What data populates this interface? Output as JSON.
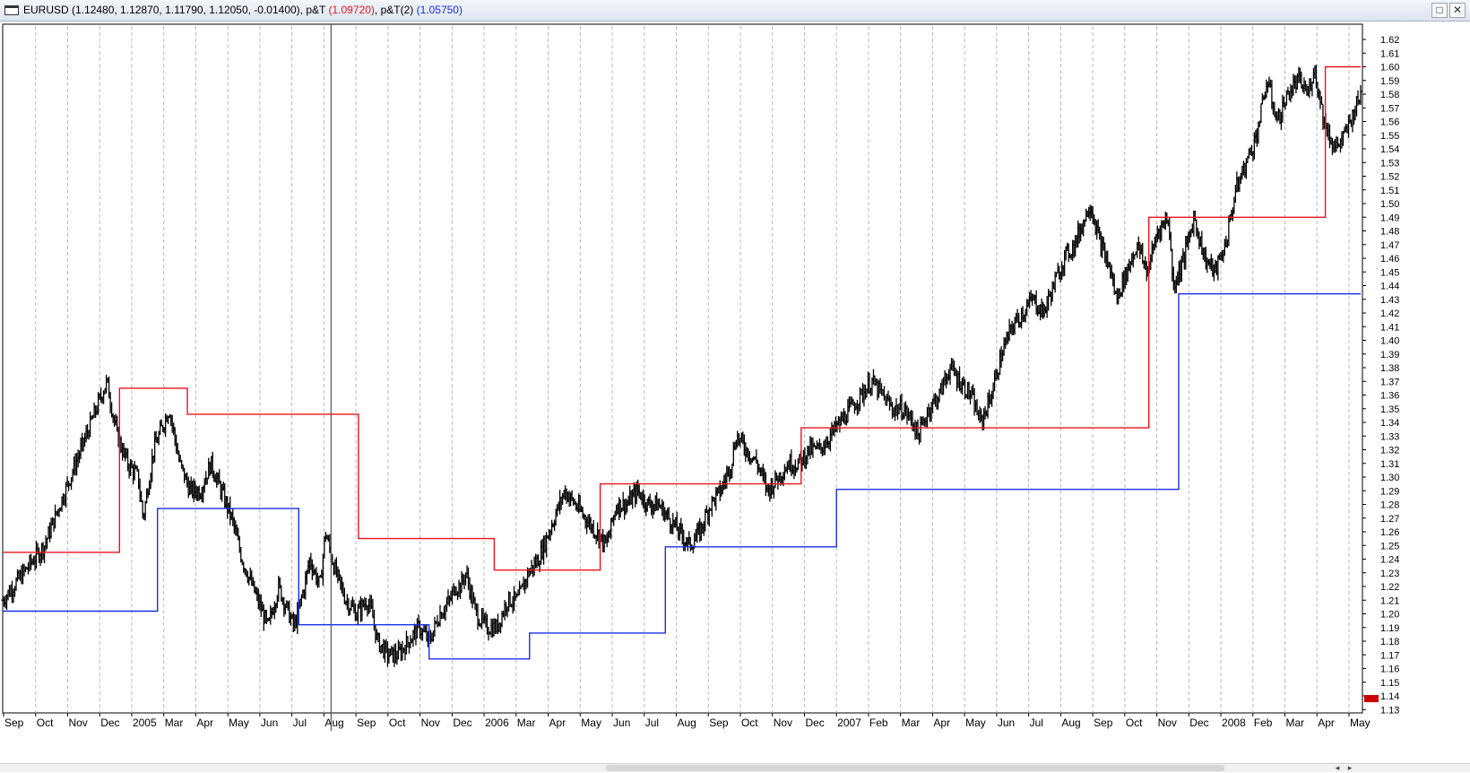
{
  "window": {
    "symbol": "EURUSD",
    "ohlc_text": "(1.12480, 1.12870, 1.11790, 1.12050, -0.01400),",
    "ind1_name": "p&T",
    "ind1_value": "(1.09720)",
    "ind2_name": "p&T(2)",
    "ind2_value": "(1.05750)",
    "maximize_icon": "□",
    "close_icon": "✕"
  },
  "colors": {
    "price": "#000000",
    "resistance": "#e8141e",
    "support": "#1a2fe8",
    "grid": "#b7b7b7",
    "ind1_text": "#e8141e",
    "ind2_text": "#1a2fe8"
  },
  "icons": {
    "close": "close-icon",
    "maximize": "maximize-icon",
    "window": "chart-window-icon"
  },
  "chart_data": {
    "type": "ohlc",
    "price_axis": {
      "min": 1.13,
      "max": 1.62,
      "step": 0.01,
      "labels": [
        "1.62",
        "1.61",
        "1.60",
        "1.59",
        "1.58",
        "1.57",
        "1.56",
        "1.55",
        "1.54",
        "1.53",
        "1.52",
        "1.51",
        "1.50",
        "1.49",
        "1.48",
        "1.47",
        "1.46",
        "1.45",
        "1.44",
        "1.43",
        "1.42",
        "1.41",
        "1.40",
        "1.39",
        "1.38",
        "1.37",
        "1.36",
        "1.35",
        "1.34",
        "1.33",
        "1.32",
        "1.31",
        "1.30",
        "1.29",
        "1.28",
        "1.27",
        "1.26",
        "1.25",
        "1.24",
        "1.23",
        "1.22",
        "1.21",
        "1.20",
        "1.19",
        "1.18",
        "1.17",
        "1.16",
        "1.15",
        "1.14",
        "1.13"
      ]
    },
    "time_axis": {
      "labels": [
        "Sep",
        "Oct",
        "Nov",
        "Dec",
        "2005",
        "Mar",
        "Apr",
        "May",
        "Jun",
        "Jul",
        "Aug",
        "Sep",
        "Oct",
        "Nov",
        "Dec",
        "2006",
        "Mar",
        "Apr",
        "May",
        "Jun",
        "Jul",
        "Aug",
        "Sep",
        "Oct",
        "Nov",
        "Dec",
        "2007",
        "Feb",
        "Mar",
        "Apr",
        "May",
        "Jun",
        "Jul",
        "Aug",
        "Sep",
        "Oct",
        "Nov",
        "Dec",
        "2008",
        "Feb",
        "Mar",
        "Apr",
        "May"
      ]
    },
    "grid": {
      "vertical": true,
      "horizontal": false,
      "style": "dashed"
    },
    "crosshair_month": "Aug",
    "price_path": [
      [
        0,
        1.21
      ],
      [
        4,
        1.23
      ],
      [
        8,
        1.25
      ],
      [
        11,
        1.28
      ],
      [
        14,
        1.31
      ],
      [
        17,
        1.34
      ],
      [
        19,
        1.36
      ],
      [
        20,
        1.37
      ],
      [
        22,
        1.33
      ],
      [
        24,
        1.31
      ],
      [
        26,
        1.3
      ],
      [
        27,
        1.27
      ],
      [
        29,
        1.32
      ],
      [
        31,
        1.34
      ],
      [
        32,
        1.35
      ],
      [
        34,
        1.31
      ],
      [
        36,
        1.29
      ],
      [
        38,
        1.29
      ],
      [
        40,
        1.31
      ],
      [
        42,
        1.29
      ],
      [
        44,
        1.27
      ],
      [
        46,
        1.24
      ],
      [
        48,
        1.22
      ],
      [
        50,
        1.2
      ],
      [
        51,
        1.19
      ],
      [
        53,
        1.22
      ],
      [
        56,
        1.19
      ],
      [
        58,
        1.22
      ],
      [
        59,
        1.24
      ],
      [
        61,
        1.22
      ],
      [
        62,
        1.26
      ],
      [
        64,
        1.23
      ],
      [
        66,
        1.21
      ],
      [
        68,
        1.2
      ],
      [
        70,
        1.21
      ],
      [
        71,
        1.2
      ],
      [
        72,
        1.18
      ],
      [
        74,
        1.17
      ],
      [
        76,
        1.17
      ],
      [
        78,
        1.18
      ],
      [
        80,
        1.19
      ],
      [
        82,
        1.18
      ],
      [
        84,
        1.2
      ],
      [
        86,
        1.21
      ],
      [
        87,
        1.22
      ],
      [
        88,
        1.22
      ],
      [
        89,
        1.23
      ],
      [
        91,
        1.2
      ],
      [
        93,
        1.19
      ],
      [
        95,
        1.19
      ],
      [
        97,
        1.21
      ],
      [
        99,
        1.21
      ],
      [
        101,
        1.23
      ],
      [
        103,
        1.24
      ],
      [
        105,
        1.26
      ],
      [
        107,
        1.28
      ],
      [
        108,
        1.29
      ],
      [
        110,
        1.28
      ],
      [
        112,
        1.27
      ],
      [
        114,
        1.26
      ],
      [
        116,
        1.25
      ],
      [
        118,
        1.28
      ],
      [
        120,
        1.28
      ],
      [
        122,
        1.29
      ],
      [
        124,
        1.28
      ],
      [
        126,
        1.28
      ],
      [
        128,
        1.27
      ],
      [
        130,
        1.26
      ],
      [
        132,
        1.25
      ],
      [
        134,
        1.26
      ],
      [
        136,
        1.28
      ],
      [
        138,
        1.29
      ],
      [
        140,
        1.31
      ],
      [
        141,
        1.33
      ],
      [
        143,
        1.32
      ],
      [
        145,
        1.31
      ],
      [
        147,
        1.29
      ],
      [
        149,
        1.3
      ],
      [
        151,
        1.31
      ],
      [
        153,
        1.31
      ],
      [
        155,
        1.32
      ],
      [
        157,
        1.32
      ],
      [
        159,
        1.33
      ],
      [
        161,
        1.34
      ],
      [
        163,
        1.35
      ],
      [
        165,
        1.36
      ],
      [
        167,
        1.37
      ],
      [
        169,
        1.36
      ],
      [
        171,
        1.35
      ],
      [
        173,
        1.35
      ],
      [
        175,
        1.34
      ],
      [
        176,
        1.33
      ],
      [
        178,
        1.35
      ],
      [
        180,
        1.36
      ],
      [
        182,
        1.38
      ],
      [
        184,
        1.37
      ],
      [
        186,
        1.36
      ],
      [
        188,
        1.34
      ],
      [
        190,
        1.36
      ],
      [
        192,
        1.39
      ],
      [
        194,
        1.41
      ],
      [
        196,
        1.42
      ],
      [
        198,
        1.43
      ],
      [
        200,
        1.42
      ],
      [
        202,
        1.44
      ],
      [
        204,
        1.46
      ],
      [
        206,
        1.47
      ],
      [
        208,
        1.49
      ],
      [
        209,
        1.5
      ],
      [
        211,
        1.47
      ],
      [
        213,
        1.45
      ],
      [
        214,
        1.43
      ],
      [
        216,
        1.45
      ],
      [
        218,
        1.47
      ],
      [
        220,
        1.45
      ],
      [
        222,
        1.48
      ],
      [
        224,
        1.49
      ],
      [
        225,
        1.44
      ],
      [
        227,
        1.46
      ],
      [
        229,
        1.49
      ],
      [
        231,
        1.46
      ],
      [
        233,
        1.45
      ],
      [
        235,
        1.47
      ],
      [
        237,
        1.51
      ],
      [
        239,
        1.53
      ],
      [
        241,
        1.55
      ],
      [
        242,
        1.57
      ],
      [
        243,
        1.59
      ],
      [
        245,
        1.56
      ],
      [
        247,
        1.58
      ],
      [
        249,
        1.59
      ],
      [
        251,
        1.58
      ],
      [
        252,
        1.6
      ],
      [
        254,
        1.56
      ],
      [
        256,
        1.54
      ],
      [
        258,
        1.55
      ],
      [
        260,
        1.57
      ],
      [
        261,
        1.58
      ]
    ],
    "series": [
      {
        "name": "p&T",
        "steps": [
          [
            0,
            1.245
          ],
          [
            43,
            1.245
          ],
          [
            43,
            1.365
          ],
          [
            68,
            1.365
          ],
          [
            68,
            1.346
          ],
          [
            131,
            1.346
          ],
          [
            131,
            1.255
          ],
          [
            181,
            1.255
          ],
          [
            181,
            1.232
          ],
          [
            220,
            1.232
          ],
          [
            220,
            1.295
          ],
          [
            294,
            1.295
          ],
          [
            294,
            1.336
          ],
          [
            422,
            1.336
          ],
          [
            422,
            1.49
          ],
          [
            487,
            1.49
          ],
          [
            487,
            1.6
          ],
          [
            500,
            1.6
          ]
        ]
      },
      {
        "name": "p&T(2)",
        "steps": [
          [
            0,
            1.202
          ],
          [
            57,
            1.202
          ],
          [
            57,
            1.277
          ],
          [
            109,
            1.277
          ],
          [
            109,
            1.192
          ],
          [
            157,
            1.192
          ],
          [
            157,
            1.167
          ],
          [
            194,
            1.167
          ],
          [
            194,
            1.186
          ],
          [
            244,
            1.186
          ],
          [
            244,
            1.249
          ],
          [
            307,
            1.249
          ],
          [
            307,
            1.291
          ],
          [
            433,
            1.291
          ],
          [
            433,
            1.434
          ],
          [
            500,
            1.434
          ]
        ]
      }
    ]
  },
  "scrollbar": {
    "left_arrow": "◂",
    "right_arrow": "▸"
  }
}
